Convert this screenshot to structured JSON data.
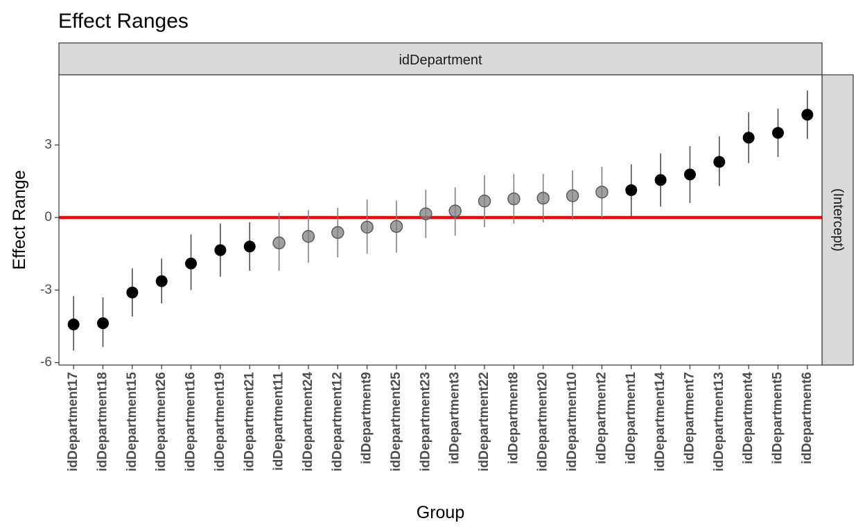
{
  "chart_data": {
    "type": "scatter",
    "title": "Effect Ranges",
    "xlabel": "Group",
    "ylabel": "Effect Range",
    "facet_top": "idDepartment",
    "facet_right": "(Intercept)",
    "ylim": [
      -6.1,
      5.9
    ],
    "yticks": [
      -6,
      -3,
      0,
      3
    ],
    "reference_line": 0,
    "reference_color": "#ff0000",
    "significant_color": "#000000",
    "nonsignificant_color": "#808080",
    "categories": [
      "idDepartment17",
      "idDepartment18",
      "idDepartment15",
      "idDepartment26",
      "idDepartment16",
      "idDepartment19",
      "idDepartment21",
      "idDepartment11",
      "idDepartment24",
      "idDepartment12",
      "idDepartment9",
      "idDepartment25",
      "idDepartment23",
      "idDepartment3",
      "idDepartment22",
      "idDepartment8",
      "idDepartment20",
      "idDepartment10",
      "idDepartment2",
      "idDepartment1",
      "idDepartment14",
      "idDepartment7",
      "idDepartment13",
      "idDepartment4",
      "idDepartment5",
      "idDepartment6"
    ],
    "estimate": [
      -4.42,
      -4.37,
      -3.1,
      -2.63,
      -1.9,
      -1.35,
      -1.2,
      -1.05,
      -0.78,
      -0.62,
      -0.4,
      -0.37,
      0.15,
      0.27,
      0.68,
      0.77,
      0.8,
      0.9,
      1.05,
      1.13,
      1.55,
      1.78,
      2.3,
      3.3,
      3.5,
      4.25
    ],
    "lower": [
      -5.5,
      -5.35,
      -4.1,
      -3.55,
      -3.0,
      -2.45,
      -2.2,
      -2.2,
      -1.87,
      -1.65,
      -1.5,
      -1.45,
      -0.85,
      -0.75,
      -0.4,
      -0.25,
      -0.2,
      -0.1,
      0.0,
      0.05,
      0.45,
      0.6,
      1.3,
      2.25,
      2.5,
      3.25
    ],
    "upper": [
      -3.25,
      -3.3,
      -2.1,
      -1.7,
      -0.7,
      -0.25,
      -0.2,
      0.2,
      0.3,
      0.4,
      0.75,
      0.7,
      1.15,
      1.25,
      1.75,
      1.8,
      1.8,
      1.95,
      2.1,
      2.2,
      2.65,
      2.95,
      3.35,
      4.35,
      4.5,
      5.25
    ]
  }
}
